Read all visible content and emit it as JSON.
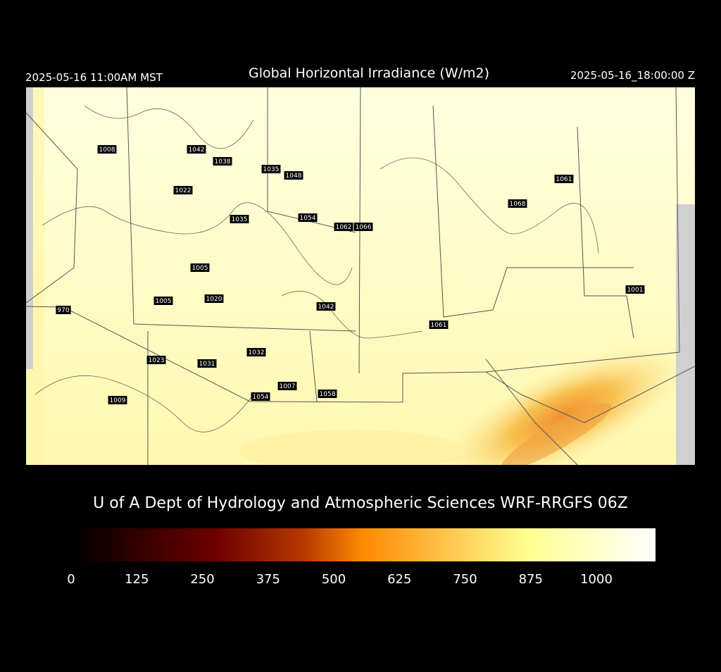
{
  "header": {
    "left": "2025-05-16 11:00AM MST",
    "title": "Global Horizontal Irradiance (W/m2)",
    "right": "2025-05-16_18:00:00 Z"
  },
  "map": {
    "point_labels": [
      1008,
      1042,
      1038,
      1035,
      1048,
      1022,
      1035,
      1054,
      1062,
      1066,
      1061,
      1068,
      1005,
      1005,
      1020,
      970,
      1042,
      1001,
      1061,
      1032,
      1023,
      1031,
      1007,
      1054,
      1058,
      1009
    ]
  },
  "footer": {
    "credit": "U of A Dept of Hydrology and Atmospheric Sciences WRF-RRGFS 06Z"
  },
  "colorbar": {
    "ticks": [
      0,
      125,
      250,
      375,
      500,
      625,
      750,
      875,
      1000
    ]
  }
}
